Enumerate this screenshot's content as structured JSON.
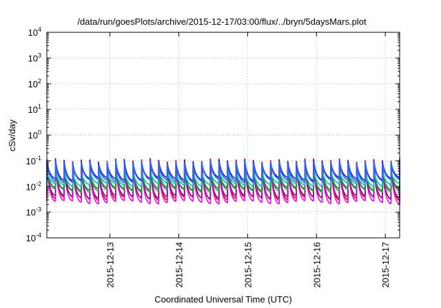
{
  "chart_data": {
    "type": "line",
    "title": "/data/run/goesPlots/archive/2015-12-17/03:00/flux/../bryn/5daysMars.plot",
    "xlabel": "Coordinated Universal Time (UTC)",
    "ylabel": "cSv/day",
    "yscale": "log",
    "ylim": [
      0.0001,
      10000
    ],
    "xlim": [
      "2015-12-12 02:00",
      "2015-12-17 05:00"
    ],
    "y_ticks": [
      {
        "value": 0.0001,
        "base": "10",
        "exp": "-4"
      },
      {
        "value": 0.001,
        "base": "10",
        "exp": "-3"
      },
      {
        "value": 0.01,
        "base": "10",
        "exp": "-2"
      },
      {
        "value": 0.1,
        "base": "10",
        "exp": "-1"
      },
      {
        "value": 1,
        "base": "10",
        "exp": "0"
      },
      {
        "value": 10,
        "base": "10",
        "exp": "1"
      },
      {
        "value": 100,
        "base": "10",
        "exp": "2"
      },
      {
        "value": 1000,
        "base": "10",
        "exp": "3"
      },
      {
        "value": 10000,
        "base": "10",
        "exp": "4"
      }
    ],
    "x_ticks": [
      {
        "value": "2015-12-13",
        "label": "2015-12-13"
      },
      {
        "value": "2015-12-14",
        "label": "2015-12-14"
      },
      {
        "value": "2015-12-15",
        "label": "2015-12-15"
      },
      {
        "value": "2015-12-16",
        "label": "2015-12-16"
      },
      {
        "value": "2015-12-17",
        "label": "2015-12-17"
      }
    ],
    "grid": true,
    "series_style": "sawtooth",
    "cycles_per_day": 8,
    "series": [
      {
        "color": "#cc1111",
        "peak": 0.105,
        "trough": 0.0035
      },
      {
        "color": "#ee11ee",
        "peak": 0.075,
        "trough": 0.0025
      },
      {
        "color": "#8a1a8a",
        "peak": 0.06,
        "trough": 0.004
      },
      {
        "color": "#7a7a7a",
        "peak": 0.05,
        "trough": 0.007
      },
      {
        "color": "#1a8a3a",
        "peak": 0.045,
        "trough": 0.008
      },
      {
        "color": "#11bbbb",
        "peak": 0.04,
        "trough": 0.012
      },
      {
        "color": "#2222dd",
        "peak": 0.095,
        "trough": 0.02
      },
      {
        "color": "#3366ee",
        "peak": 0.085,
        "trough": 0.017
      }
    ]
  }
}
